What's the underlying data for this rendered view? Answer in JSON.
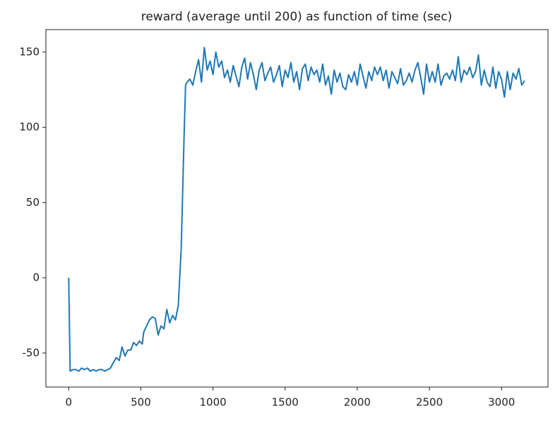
{
  "chart_data": {
    "type": "line",
    "title": "reward (average until 200) as function of time (sec)",
    "x": [
      0,
      10,
      30,
      50,
      70,
      90,
      110,
      130,
      150,
      170,
      190,
      210,
      230,
      250,
      270,
      290,
      300,
      330,
      350,
      370,
      390,
      410,
      430,
      450,
      470,
      490,
      510,
      520,
      540,
      560,
      580,
      600,
      620,
      640,
      660,
      680,
      700,
      720,
      740,
      760,
      780,
      800,
      810,
      820,
      840,
      860,
      880,
      900,
      920,
      940,
      960,
      980,
      1000,
      1020,
      1040,
      1060,
      1080,
      1100,
      1120,
      1140,
      1160,
      1180,
      1200,
      1220,
      1240,
      1260,
      1280,
      1300,
      1320,
      1340,
      1360,
      1380,
      1400,
      1420,
      1440,
      1460,
      1480,
      1500,
      1520,
      1540,
      1560,
      1580,
      1600,
      1620,
      1640,
      1660,
      1680,
      1700,
      1720,
      1740,
      1760,
      1780,
      1800,
      1820,
      1840,
      1860,
      1880,
      1900,
      1920,
      1940,
      1960,
      1980,
      2000,
      2020,
      2040,
      2060,
      2080,
      2100,
      2120,
      2140,
      2160,
      2180,
      2200,
      2220,
      2240,
      2260,
      2280,
      2300,
      2320,
      2340,
      2360,
      2380,
      2400,
      2420,
      2440,
      2460,
      2480,
      2500,
      2520,
      2540,
      2560,
      2580,
      2600,
      2620,
      2640,
      2660,
      2680,
      2700,
      2720,
      2740,
      2760,
      2780,
      2800,
      2820,
      2840,
      2860,
      2880,
      2900,
      2920,
      2940,
      2960,
      2980,
      3000,
      3020,
      3040,
      3060,
      3080,
      3100,
      3120,
      3140,
      3160
    ],
    "series": [
      {
        "color": "#1f77b4",
        "values": [
          0,
          -62,
          -61,
          -61,
          -62,
          -60,
          -61,
          -60,
          -62,
          -61,
          -62,
          -61,
          -61,
          -62,
          -61,
          -60,
          -58,
          -53,
          -55,
          -46,
          -52,
          -48,
          -48,
          -43,
          -45,
          -42,
          -44,
          -36,
          -32,
          -28,
          -26,
          -27,
          -38,
          -32,
          -34,
          -21,
          -30,
          -25,
          -28,
          -18,
          20,
          95,
          128,
          130,
          132,
          128,
          137,
          145,
          130,
          153,
          138,
          144,
          135,
          150,
          140,
          144,
          133,
          138,
          130,
          141,
          134,
          127,
          140,
          146,
          132,
          143,
          135,
          125,
          138,
          143,
          131,
          136,
          140,
          130,
          135,
          141,
          127,
          138,
          133,
          143,
          130,
          137,
          125,
          139,
          142,
          131,
          140,
          135,
          138,
          130,
          142,
          128,
          134,
          122,
          138,
          130,
          136,
          127,
          125,
          135,
          130,
          137,
          128,
          142,
          134,
          126,
          137,
          131,
          140,
          135,
          140,
          131,
          138,
          126,
          137,
          133,
          129,
          139,
          128,
          131,
          136,
          130,
          138,
          143,
          133,
          122,
          142,
          130,
          137,
          130,
          142,
          128,
          134,
          136,
          132,
          138,
          131,
          147,
          130,
          138,
          135,
          140,
          133,
          137,
          148,
          128,
          138,
          130,
          127,
          140,
          126,
          137,
          132,
          120,
          137,
          125,
          136,
          132,
          139,
          128,
          131
        ]
      }
    ],
    "xlim": [
      -158,
      3322
    ],
    "ylim": [
      -72.6,
      164.9
    ],
    "xticks": [
      0,
      500,
      1000,
      1500,
      2000,
      2500,
      3000
    ],
    "yticks": [
      -50,
      0,
      50,
      100,
      150
    ]
  }
}
